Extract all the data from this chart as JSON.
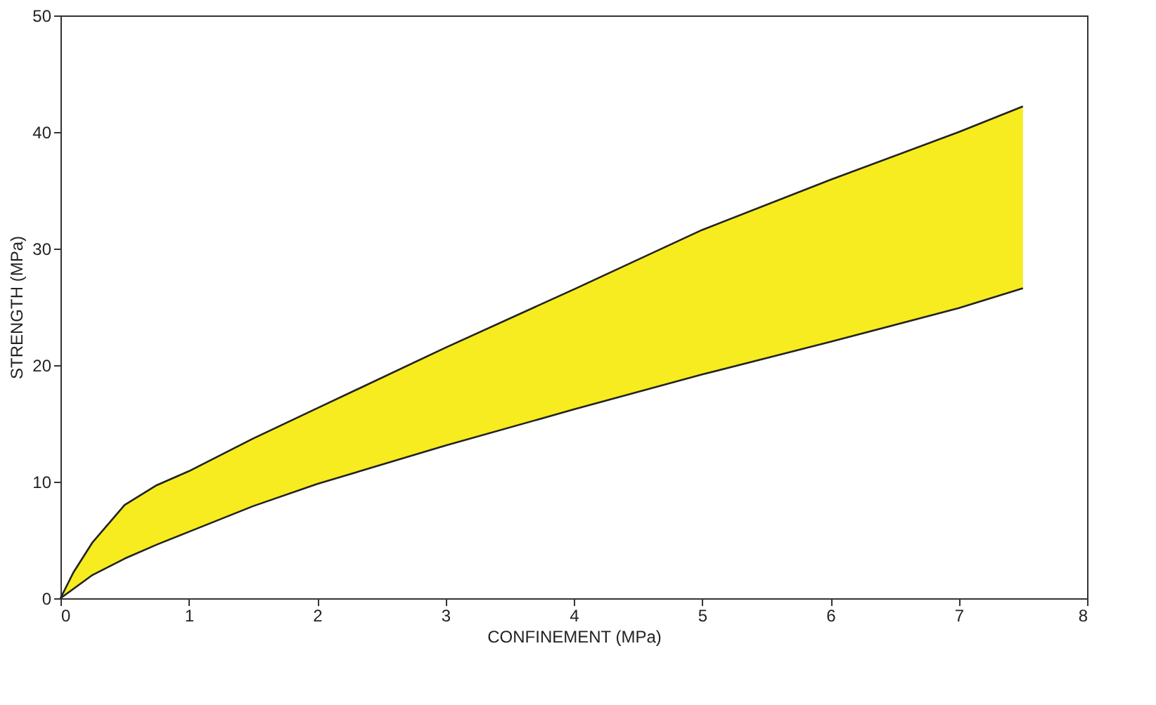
{
  "chart_data": {
    "type": "line",
    "xlabel": "CONFINEMENT (MPa)",
    "ylabel": "STRENGTH (MPa)",
    "x": [
      0,
      0.1,
      0.25,
      0.5,
      0.75,
      1,
      1.5,
      2,
      3,
      4,
      5,
      6,
      7,
      7.5
    ],
    "series": [
      {
        "color": "#222222",
        "values": [
          0,
          2.2,
          4.8,
          8.0,
          9.7,
          10.9,
          13.7,
          16.3,
          21.5,
          26.5,
          31.6,
          35.9,
          40.0,
          42.2
        ],
        "lower": [
          0,
          0.8,
          2.0,
          3.4,
          4.6,
          5.7,
          7.9,
          9.8,
          13.1,
          16.2,
          19.2,
          22.0,
          24.9,
          26.6
        ],
        "upper": [
          0,
          2.2,
          4.8,
          8.0,
          9.7,
          10.9,
          13.7,
          16.3,
          21.5,
          26.5,
          31.6,
          35.9,
          40.0,
          42.2
        ]
      },
      {
        "color": "#222222",
        "values": [
          0,
          0.8,
          2.0,
          3.4,
          4.6,
          5.7,
          7.9,
          9.8,
          13.1,
          16.2,
          19.2,
          22.0,
          24.9,
          26.6
        ]
      }
    ],
    "xlim": [
      0,
      8
    ],
    "ylim": [
      0,
      50
    ],
    "xticks": [
      0,
      1,
      2,
      3,
      4,
      5,
      6,
      7,
      8
    ],
    "yticks": [
      0,
      10,
      20,
      30,
      40,
      50
    ],
    "grid": false
  }
}
